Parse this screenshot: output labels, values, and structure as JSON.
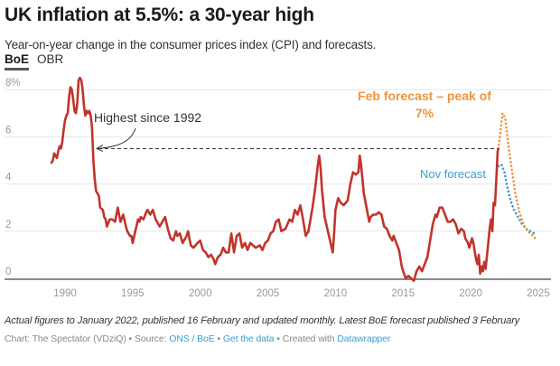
{
  "header": {
    "title": "UK inflation at 5.5%: a 30-year high",
    "subtitle": "Year-on-year change in the consumer prices index (CPI) and forecasts.",
    "tabs": [
      {
        "label": "BoE",
        "active": true
      },
      {
        "label": "OBR",
        "active": false
      }
    ]
  },
  "footer": {
    "notes": "Actual figures to January 2022, published 16 February and updated monthly. Latest BoE forecast published 3 February",
    "chart_by": "Chart: The Spectator (VDziQ) • Source: ",
    "source_link": "ONS / BoE",
    "sep1": " • ",
    "data_link": "Get the data",
    "sep2": " • Created with ",
    "tool_link": "Datawrapper"
  },
  "colors": {
    "actual": "#c0342b",
    "feb_forecast": "#f0943a",
    "nov_forecast": "#3c9dcf",
    "link": "#3c9dcf",
    "grid": "#e6e6e6",
    "axis": "#8a8a8a"
  },
  "chart_data": {
    "type": "line",
    "title": "UK inflation at 5.5%: a 30-year high",
    "xlabel": "",
    "ylabel": "",
    "xlim": [
      1988,
      2025.5
    ],
    "ylim": [
      0,
      8
    ],
    "x_ticks": [
      1990,
      1995,
      2000,
      2005,
      2010,
      2015,
      2020,
      2025
    ],
    "x_tick_labels": [
      "1990",
      "1995",
      "2000",
      "2005",
      "2010",
      "2015",
      "2020",
      "2025"
    ],
    "y_ticks": [
      0,
      2,
      4,
      6,
      8
    ],
    "y_tick_labels": [
      "0",
      "2",
      "4",
      "6",
      "8%"
    ],
    "grid": true,
    "series": [
      {
        "name": "CPI actual",
        "style": "solid",
        "points": [
          [
            1989.0,
            4.9
          ],
          [
            1989.1,
            5.0
          ],
          [
            1989.2,
            5.3
          ],
          [
            1989.3,
            5.2
          ],
          [
            1989.4,
            5.1
          ],
          [
            1989.5,
            5.4
          ],
          [
            1989.6,
            5.6
          ],
          [
            1989.7,
            5.5
          ],
          [
            1989.8,
            5.8
          ],
          [
            1989.9,
            6.3
          ],
          [
            1990.0,
            6.7
          ],
          [
            1990.1,
            6.9
          ],
          [
            1990.2,
            7.0
          ],
          [
            1990.3,
            7.7
          ],
          [
            1990.4,
            8.1
          ],
          [
            1990.5,
            8.0
          ],
          [
            1990.6,
            7.6
          ],
          [
            1990.7,
            7.1
          ],
          [
            1990.8,
            7.0
          ],
          [
            1990.9,
            7.4
          ],
          [
            1991.0,
            8.4
          ],
          [
            1991.1,
            8.5
          ],
          [
            1991.2,
            8.4
          ],
          [
            1991.3,
            8.0
          ],
          [
            1991.4,
            7.3
          ],
          [
            1991.5,
            6.9
          ],
          [
            1991.6,
            7.1
          ],
          [
            1991.7,
            7.0
          ],
          [
            1991.8,
            7.1
          ],
          [
            1991.9,
            6.9
          ],
          [
            1992.0,
            6.4
          ],
          [
            1992.1,
            5.0
          ],
          [
            1992.2,
            4.2
          ],
          [
            1992.3,
            3.7
          ],
          [
            1992.5,
            3.5
          ],
          [
            1992.6,
            3.0
          ],
          [
            1992.8,
            2.9
          ],
          [
            1992.9,
            2.6
          ],
          [
            1993.0,
            2.5
          ],
          [
            1993.1,
            2.2
          ],
          [
            1993.3,
            2.5
          ],
          [
            1993.5,
            2.5
          ],
          [
            1993.7,
            2.4
          ],
          [
            1993.9,
            3.0
          ],
          [
            1994.1,
            2.4
          ],
          [
            1994.3,
            2.7
          ],
          [
            1994.5,
            2.2
          ],
          [
            1994.6,
            2.0
          ],
          [
            1994.8,
            1.8
          ],
          [
            1994.9,
            1.8
          ],
          [
            1995.0,
            1.5
          ],
          [
            1995.2,
            2.0
          ],
          [
            1995.4,
            2.5
          ],
          [
            1995.5,
            2.4
          ],
          [
            1995.6,
            2.6
          ],
          [
            1995.8,
            2.5
          ],
          [
            1996.0,
            2.8
          ],
          [
            1996.1,
            2.9
          ],
          [
            1996.3,
            2.7
          ],
          [
            1996.5,
            2.9
          ],
          [
            1996.7,
            2.5
          ],
          [
            1996.9,
            2.3
          ],
          [
            1997.0,
            2.2
          ],
          [
            1997.2,
            2.4
          ],
          [
            1997.4,
            2.6
          ],
          [
            1997.6,
            2.1
          ],
          [
            1997.8,
            1.7
          ],
          [
            1998.0,
            1.6
          ],
          [
            1998.2,
            2.0
          ],
          [
            1998.3,
            1.8
          ],
          [
            1998.5,
            1.9
          ],
          [
            1998.7,
            1.5
          ],
          [
            1999.0,
            1.8
          ],
          [
            1999.1,
            2.0
          ],
          [
            1999.3,
            1.4
          ],
          [
            1999.5,
            1.3
          ],
          [
            1999.8,
            1.5
          ],
          [
            2000.0,
            1.6
          ],
          [
            2000.2,
            1.2
          ],
          [
            2000.4,
            1.1
          ],
          [
            2000.6,
            0.9
          ],
          [
            2000.8,
            1.0
          ],
          [
            2001.0,
            0.8
          ],
          [
            2001.1,
            0.6
          ],
          [
            2001.3,
            0.9
          ],
          [
            2001.5,
            1.0
          ],
          [
            2001.7,
            1.3
          ],
          [
            2001.9,
            1.1
          ],
          [
            2002.1,
            1.1
          ],
          [
            2002.3,
            1.9
          ],
          [
            2002.5,
            1.1
          ],
          [
            2002.7,
            1.8
          ],
          [
            2002.9,
            1.9
          ],
          [
            2003.1,
            1.3
          ],
          [
            2003.3,
            1.5
          ],
          [
            2003.5,
            1.2
          ],
          [
            2003.7,
            1.5
          ],
          [
            2003.9,
            1.4
          ],
          [
            2004.1,
            1.3
          ],
          [
            2004.4,
            1.4
          ],
          [
            2004.6,
            1.2
          ],
          [
            2004.8,
            1.5
          ],
          [
            2005.0,
            1.6
          ],
          [
            2005.2,
            1.9
          ],
          [
            2005.4,
            2.0
          ],
          [
            2005.6,
            2.4
          ],
          [
            2005.8,
            2.5
          ],
          [
            2006.0,
            2.0
          ],
          [
            2006.3,
            2.1
          ],
          [
            2006.6,
            2.5
          ],
          [
            2006.8,
            2.4
          ],
          [
            2007.0,
            2.9
          ],
          [
            2007.2,
            2.7
          ],
          [
            2007.4,
            3.1
          ],
          [
            2007.6,
            2.5
          ],
          [
            2007.8,
            1.8
          ],
          [
            2008.0,
            2.0
          ],
          [
            2008.3,
            3.0
          ],
          [
            2008.5,
            3.8
          ],
          [
            2008.7,
            4.8
          ],
          [
            2008.8,
            5.2
          ],
          [
            2008.9,
            4.7
          ],
          [
            2009.0,
            3.8
          ],
          [
            2009.2,
            2.6
          ],
          [
            2009.4,
            2.1
          ],
          [
            2009.6,
            1.6
          ],
          [
            2009.8,
            1.1
          ],
          [
            2009.9,
            1.9
          ],
          [
            2010.0,
            2.9
          ],
          [
            2010.2,
            3.4
          ],
          [
            2010.4,
            3.2
          ],
          [
            2010.6,
            3.1
          ],
          [
            2010.9,
            3.3
          ],
          [
            2011.1,
            4.0
          ],
          [
            2011.3,
            4.5
          ],
          [
            2011.5,
            4.4
          ],
          [
            2011.7,
            4.5
          ],
          [
            2011.8,
            5.2
          ],
          [
            2011.9,
            4.8
          ],
          [
            2012.1,
            3.6
          ],
          [
            2012.3,
            3.0
          ],
          [
            2012.5,
            2.4
          ],
          [
            2012.6,
            2.6
          ],
          [
            2012.8,
            2.7
          ],
          [
            2013.0,
            2.7
          ],
          [
            2013.2,
            2.8
          ],
          [
            2013.4,
            2.7
          ],
          [
            2013.6,
            2.2
          ],
          [
            2013.8,
            2.1
          ],
          [
            2014.0,
            1.8
          ],
          [
            2014.2,
            1.6
          ],
          [
            2014.3,
            1.8
          ],
          [
            2014.5,
            1.5
          ],
          [
            2014.7,
            1.2
          ],
          [
            2014.9,
            0.5
          ],
          [
            2015.0,
            0.3
          ],
          [
            2015.2,
            0.0
          ],
          [
            2015.4,
            0.1
          ],
          [
            2015.6,
            0.0
          ],
          [
            2015.8,
            -0.1
          ],
          [
            2016.0,
            0.3
          ],
          [
            2016.2,
            0.5
          ],
          [
            2016.4,
            0.3
          ],
          [
            2016.6,
            0.6
          ],
          [
            2016.8,
            0.9
          ],
          [
            2017.0,
            1.6
          ],
          [
            2017.2,
            2.3
          ],
          [
            2017.4,
            2.7
          ],
          [
            2017.5,
            2.6
          ],
          [
            2017.7,
            3.0
          ],
          [
            2017.9,
            3.0
          ],
          [
            2018.1,
            2.7
          ],
          [
            2018.3,
            2.4
          ],
          [
            2018.5,
            2.4
          ],
          [
            2018.7,
            2.5
          ],
          [
            2018.9,
            2.3
          ],
          [
            2019.1,
            1.9
          ],
          [
            2019.3,
            2.1
          ],
          [
            2019.5,
            2.0
          ],
          [
            2019.6,
            1.7
          ],
          [
            2019.8,
            1.5
          ],
          [
            2019.9,
            1.3
          ],
          [
            2020.1,
            1.7
          ],
          [
            2020.2,
            1.5
          ],
          [
            2020.4,
            0.8
          ],
          [
            2020.5,
            0.6
          ],
          [
            2020.6,
            1.0
          ],
          [
            2020.7,
            0.2
          ],
          [
            2020.8,
            0.5
          ],
          [
            2020.9,
            0.3
          ],
          [
            2021.0,
            0.7
          ],
          [
            2021.1,
            0.4
          ],
          [
            2021.3,
            1.5
          ],
          [
            2021.4,
            2.1
          ],
          [
            2021.5,
            2.5
          ],
          [
            2021.6,
            2.0
          ],
          [
            2021.7,
            3.2
          ],
          [
            2021.8,
            3.1
          ],
          [
            2021.9,
            4.2
          ],
          [
            2022.0,
            5.4
          ],
          [
            2022.05,
            5.5
          ]
        ]
      },
      {
        "name": "Feb forecast",
        "style": "dotted",
        "points": [
          [
            2022.05,
            5.5
          ],
          [
            2022.2,
            6.2
          ],
          [
            2022.35,
            7.0
          ],
          [
            2022.55,
            6.8
          ],
          [
            2022.75,
            5.8
          ],
          [
            2023.0,
            4.8
          ],
          [
            2023.3,
            3.6
          ],
          [
            2023.6,
            2.8
          ],
          [
            2023.9,
            2.3
          ],
          [
            2024.2,
            2.0
          ],
          [
            2024.6,
            1.8
          ],
          [
            2024.95,
            1.6
          ]
        ]
      },
      {
        "name": "Nov forecast",
        "style": "dotted",
        "points": [
          [
            2021.95,
            4.6
          ],
          [
            2022.1,
            4.8
          ],
          [
            2022.3,
            4.8
          ],
          [
            2022.5,
            4.5
          ],
          [
            2022.7,
            3.9
          ],
          [
            2022.95,
            3.3
          ],
          [
            2023.2,
            2.9
          ],
          [
            2023.5,
            2.6
          ],
          [
            2023.8,
            2.3
          ],
          [
            2024.1,
            2.1
          ],
          [
            2024.4,
            2.0
          ],
          [
            2024.7,
            1.9
          ]
        ]
      }
    ],
    "annotations": [
      {
        "text": "Highest since 1992",
        "target": [
          1992.2,
          5.5
        ]
      },
      {
        "text": "Feb forecast – peak of",
        "text2": "7%"
      },
      {
        "text": "Nov forecast"
      }
    ],
    "reference_line": {
      "value": 5.5,
      "from": 1992.2,
      "to": 2022.05,
      "style": "dashed"
    }
  }
}
